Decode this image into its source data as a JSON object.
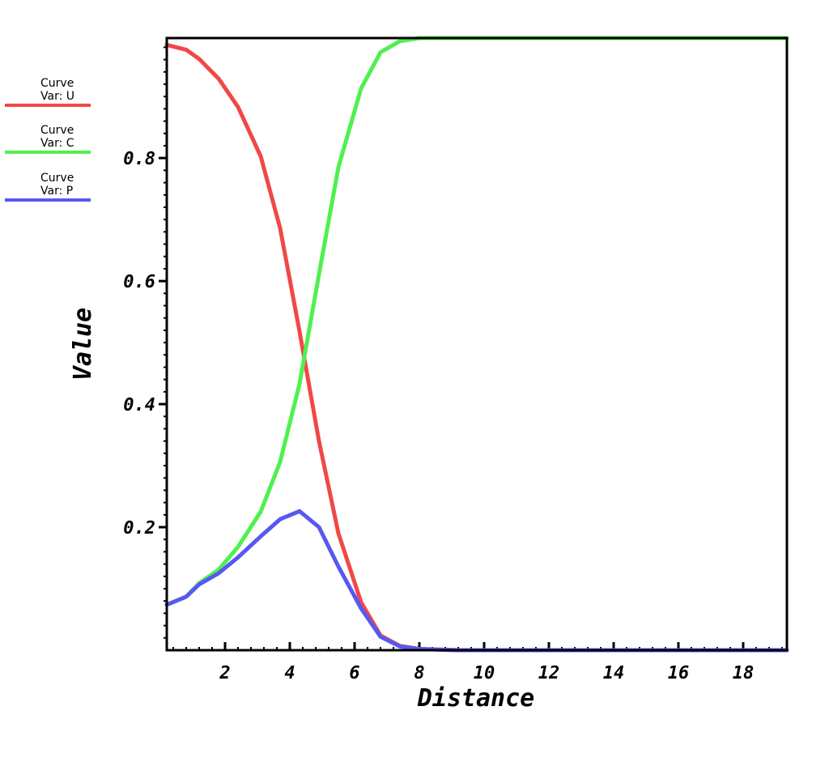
{
  "chart_data": {
    "type": "line",
    "xlabel": "Distance",
    "ylabel": "Value",
    "xlim": [
      0.2,
      19.35
    ],
    "ylim": [
      0.0,
      0.995
    ],
    "xticks": [
      "2",
      "4",
      "6",
      "8",
      "10",
      "12",
      "14",
      "16",
      "18"
    ],
    "yticks": [
      "0.2",
      "0.4",
      "0.6",
      "0.8"
    ],
    "legend_position": "left",
    "series": [
      {
        "name": "Var: U",
        "legend_title": "Curve",
        "color": "#f04848",
        "x": [
          0.2,
          0.8,
          1.2,
          1.8,
          2.4,
          3.1,
          3.7,
          4.3,
          4.9,
          5.5,
          6.2,
          6.8,
          7.4,
          8.0,
          8.6,
          9.2,
          10,
          12,
          14,
          16,
          19.35
        ],
        "y": [
          0.984,
          0.976,
          0.961,
          0.929,
          0.883,
          0.803,
          0.686,
          0.518,
          0.34,
          0.19,
          0.078,
          0.024,
          0.007,
          0.002,
          0.001,
          0.0,
          0.0,
          0.0,
          0.0,
          0.0,
          0.0
        ]
      },
      {
        "name": "Var: C",
        "legend_title": "Curve",
        "color": "#50f050",
        "x": [
          0.2,
          0.8,
          1.2,
          1.8,
          2.4,
          3.1,
          3.7,
          4.3,
          4.9,
          5.5,
          6.2,
          6.8,
          7.4,
          8.0,
          8.6,
          9.2,
          10,
          12,
          14,
          16,
          19.35
        ],
        "y": [
          0.074,
          0.087,
          0.109,
          0.131,
          0.168,
          0.225,
          0.306,
          0.433,
          0.611,
          0.785,
          0.913,
          0.972,
          0.99,
          0.995,
          0.995,
          0.995,
          0.995,
          0.995,
          0.995,
          0.995,
          0.995
        ]
      },
      {
        "name": "Var: P",
        "legend_title": "Curve",
        "color": "#5858f0",
        "x": [
          0.2,
          0.8,
          1.2,
          1.8,
          2.4,
          3.1,
          3.7,
          4.3,
          4.9,
          5.5,
          6.2,
          6.8,
          7.4,
          8.0,
          8.6,
          9.2,
          10,
          12,
          14,
          16,
          19.35
        ],
        "y": [
          0.074,
          0.087,
          0.107,
          0.125,
          0.151,
          0.185,
          0.213,
          0.226,
          0.2,
          0.136,
          0.068,
          0.022,
          0.006,
          0.002,
          0.001,
          0.0,
          0.0,
          0.0,
          0.0,
          0.0,
          0.0
        ]
      }
    ]
  }
}
